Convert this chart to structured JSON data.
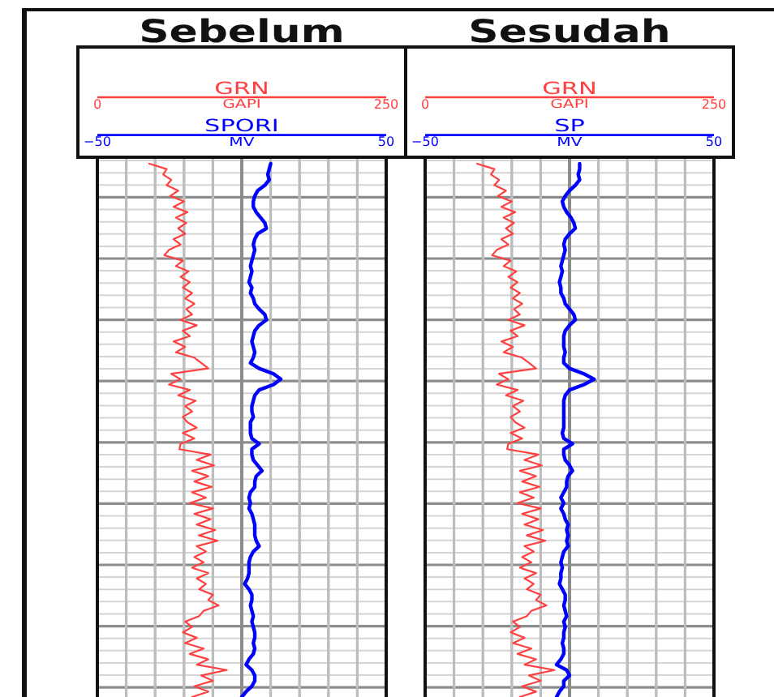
{
  "chart_data": [
    {
      "type": "line",
      "title": "Sebelum",
      "orientation": "horizontal",
      "grid": true,
      "categories": [
        null,
        null,
        null,
        null,
        null,
        null,
        null,
        null,
        null,
        null,
        null,
        null,
        null,
        null,
        null,
        null,
        null,
        null,
        null,
        null,
        null,
        null,
        null,
        null,
        null,
        null,
        null,
        null,
        null,
        null,
        null,
        null,
        null,
        null,
        null,
        null,
        null,
        null,
        null,
        null,
        null,
        null,
        null,
        null,
        null,
        null,
        null,
        null,
        null,
        null,
        null,
        null,
        null,
        null,
        null,
        null,
        null,
        null,
        null,
        null,
        null,
        null,
        null,
        null,
        null,
        null,
        null,
        null,
        null,
        null,
        null,
        null,
        null,
        null,
        null,
        null,
        null,
        null,
        null,
        null,
        null,
        null,
        null,
        null,
        null,
        null,
        null,
        null,
        null,
        null,
        null,
        null,
        null,
        null,
        null,
        null,
        null,
        null,
        null,
        null
      ],
      "xlim": [
        0,
        250
      ],
      "xticks": [
        {
          "value": 0,
          "label": "0"
        },
        {
          "value": 25,
          "label": null
        },
        {
          "value": 50,
          "label": null
        },
        {
          "value": 75,
          "label": null
        },
        {
          "value": 100,
          "label": null
        },
        {
          "value": 125,
          "label": null
        },
        {
          "value": 150,
          "label": null
        },
        {
          "value": 175,
          "label": null
        },
        {
          "value": 200,
          "label": null
        },
        {
          "value": 225,
          "label": null
        },
        {
          "value": 250,
          "label": "250"
        }
      ],
      "xlabel": "GAPI",
      "x2lim": [
        -50,
        50
      ],
      "x2ticks": [
        {
          "value": -50,
          "label": "−50"
        },
        {
          "value": -40,
          "label": null
        },
        {
          "value": -30,
          "label": null
        },
        {
          "value": -20,
          "label": null
        },
        {
          "value": -10,
          "label": null
        },
        {
          "value": 0,
          "label": null
        },
        {
          "value": 10,
          "label": null
        },
        {
          "value": 20,
          "label": null
        },
        {
          "value": 30,
          "label": null
        },
        {
          "value": 40,
          "label": null
        },
        {
          "value": 50,
          "label": "50"
        }
      ],
      "x2label": "MV",
      "series": [
        {
          "name": "GRN",
          "color": "#ff4040",
          "values": [
            45,
            60,
            57,
            64,
            60,
            70,
            63,
            75,
            66,
            78,
            68,
            77,
            70,
            76,
            66,
            72,
            62,
            58,
            74,
            68,
            79,
            72,
            80,
            74,
            82,
            76,
            84,
            77,
            82,
            72,
            86,
            74,
            80,
            66,
            76,
            68,
            84,
            90,
            96,
            64,
            72,
            62,
            80,
            70,
            85,
            76,
            82,
            74,
            78,
            86,
            74,
            84,
            72,
            71,
            98,
            86,
            101,
            82,
            96,
            84,
            99,
            82,
            94,
            80,
            100,
            84,
            98,
            86,
            102,
            88,
            104,
            86,
            94,
            84,
            92,
            82,
            96,
            86,
            94,
            88,
            100,
            96,
            105,
            92,
            88,
            76,
            82,
            74,
            86,
            76,
            92,
            80,
            96,
            86,
            112,
            90,
            100,
            84,
            96,
            82
          ]
        },
        {
          "name": "SPORI",
          "color": "#0000ff",
          "axis": "x2",
          "values": [
            10,
            9.5,
            9,
            9.5,
            8,
            5.5,
            4.5,
            4,
            4,
            5,
            6.5,
            8,
            8.5,
            5.5,
            4.5,
            4,
            4.5,
            4,
            3.5,
            3,
            3.5,
            3,
            2.5,
            3.5,
            3,
            4,
            4.5,
            6,
            8,
            8.5,
            6,
            4.5,
            4,
            3.5,
            4,
            4.5,
            4,
            3,
            6,
            11,
            13.5,
            11,
            6,
            4.5,
            4,
            3.5,
            3.5,
            4,
            3,
            3,
            3,
            3.5,
            6,
            3.5,
            3.5,
            4,
            5.5,
            7,
            5,
            4.5,
            4.5,
            3,
            2.5,
            3,
            2.5,
            3.5,
            4,
            4.5,
            4.5,
            4.5,
            5,
            6,
            4,
            3,
            2.5,
            2.5,
            2.5,
            2,
            1,
            2.5,
            3.5,
            3.5,
            3,
            3.5,
            4,
            3.5,
            4,
            4.5,
            4.5,
            4,
            4.5,
            4,
            2.5,
            1.5,
            3.5,
            4.5,
            4.5,
            3.5,
            1.5,
            0
          ]
        }
      ]
    },
    {
      "type": "line",
      "title": "Sesudah",
      "orientation": "horizontal",
      "grid": true,
      "categories": [
        null,
        null,
        null,
        null,
        null,
        null,
        null,
        null,
        null,
        null,
        null,
        null,
        null,
        null,
        null,
        null,
        null,
        null,
        null,
        null,
        null,
        null,
        null,
        null,
        null,
        null,
        null,
        null,
        null,
        null,
        null,
        null,
        null,
        null,
        null,
        null,
        null,
        null,
        null,
        null,
        null,
        null,
        null,
        null,
        null,
        null,
        null,
        null,
        null,
        null,
        null,
        null,
        null,
        null,
        null,
        null,
        null,
        null,
        null,
        null,
        null,
        null,
        null,
        null,
        null,
        null,
        null,
        null,
        null,
        null,
        null,
        null,
        null,
        null,
        null,
        null,
        null,
        null,
        null,
        null,
        null,
        null,
        null,
        null,
        null,
        null,
        null,
        null,
        null,
        null,
        null,
        null,
        null,
        null,
        null,
        null,
        null,
        null,
        null,
        null
      ],
      "xlim": [
        0,
        250
      ],
      "xticks": [
        {
          "value": 0,
          "label": "0"
        },
        {
          "value": 25,
          "label": null
        },
        {
          "value": 50,
          "label": null
        },
        {
          "value": 75,
          "label": null
        },
        {
          "value": 100,
          "label": null
        },
        {
          "value": 125,
          "label": null
        },
        {
          "value": 150,
          "label": null
        },
        {
          "value": 175,
          "label": null
        },
        {
          "value": 200,
          "label": null
        },
        {
          "value": 225,
          "label": null
        },
        {
          "value": 250,
          "label": "250"
        }
      ],
      "xlabel": "GAPI",
      "x2lim": [
        -50,
        50
      ],
      "x2ticks": [
        {
          "value": -50,
          "label": "−50"
        },
        {
          "value": -40,
          "label": null
        },
        {
          "value": -30,
          "label": null
        },
        {
          "value": -20,
          "label": null
        },
        {
          "value": -10,
          "label": null
        },
        {
          "value": 0,
          "label": null
        },
        {
          "value": 10,
          "label": null
        },
        {
          "value": 20,
          "label": null
        },
        {
          "value": 30,
          "label": null
        },
        {
          "value": 40,
          "label": null
        },
        {
          "value": 50,
          "label": "50"
        }
      ],
      "x2label": "MV",
      "series": [
        {
          "name": "GRN",
          "color": "#ff4040",
          "values": [
            45,
            60,
            57,
            64,
            60,
            70,
            63,
            75,
            66,
            78,
            68,
            77,
            70,
            76,
            66,
            72,
            62,
            58,
            74,
            68,
            79,
            72,
            80,
            74,
            82,
            76,
            84,
            77,
            82,
            72,
            86,
            74,
            80,
            66,
            76,
            68,
            84,
            90,
            96,
            64,
            72,
            62,
            80,
            70,
            85,
            76,
            82,
            74,
            78,
            86,
            74,
            84,
            72,
            71,
            98,
            86,
            101,
            82,
            96,
            84,
            99,
            82,
            94,
            80,
            100,
            84,
            98,
            86,
            102,
            88,
            104,
            86,
            94,
            84,
            92,
            82,
            96,
            86,
            94,
            88,
            100,
            96,
            105,
            92,
            88,
            76,
            82,
            74,
            86,
            76,
            92,
            80,
            96,
            86,
            112,
            90,
            100,
            84,
            96,
            82
          ]
        },
        {
          "name": "SP",
          "color": "#0000ff",
          "axis": "x2",
          "values": [
            3.5,
            3.5,
            3,
            3.5,
            2,
            0,
            -1.5,
            -2.5,
            -2,
            -1,
            0.5,
            1.5,
            2,
            0,
            -1.5,
            -2,
            -1.5,
            -2,
            -2.5,
            -3,
            -2.5,
            -3,
            -3.5,
            -3,
            -3,
            -2,
            -1.5,
            0,
            1.5,
            2,
            0,
            -1.5,
            -2,
            -2,
            -2,
            -1.5,
            -2,
            -2,
            0,
            5,
            8.5,
            5,
            0,
            -1.5,
            -2,
            -2,
            -2,
            -2,
            -2,
            -2,
            -2.5,
            -2,
            1,
            -2,
            -2,
            -1.5,
            0,
            1,
            -0.5,
            -1,
            -1,
            -2,
            -3,
            -2,
            -3,
            -2,
            -1.5,
            -0.5,
            -1,
            -0.5,
            -1,
            -0.5,
            -2,
            -2.5,
            -3,
            -2.5,
            -3,
            -3,
            -3.5,
            -2.5,
            -1.5,
            -1.5,
            -2,
            -1.5,
            -1,
            -2,
            -1.5,
            -2,
            -2,
            -2.5,
            -2,
            -2,
            -3,
            -4.5,
            -1,
            0,
            -2,
            -2,
            -3.5,
            -4.5
          ]
        }
      ]
    }
  ]
}
